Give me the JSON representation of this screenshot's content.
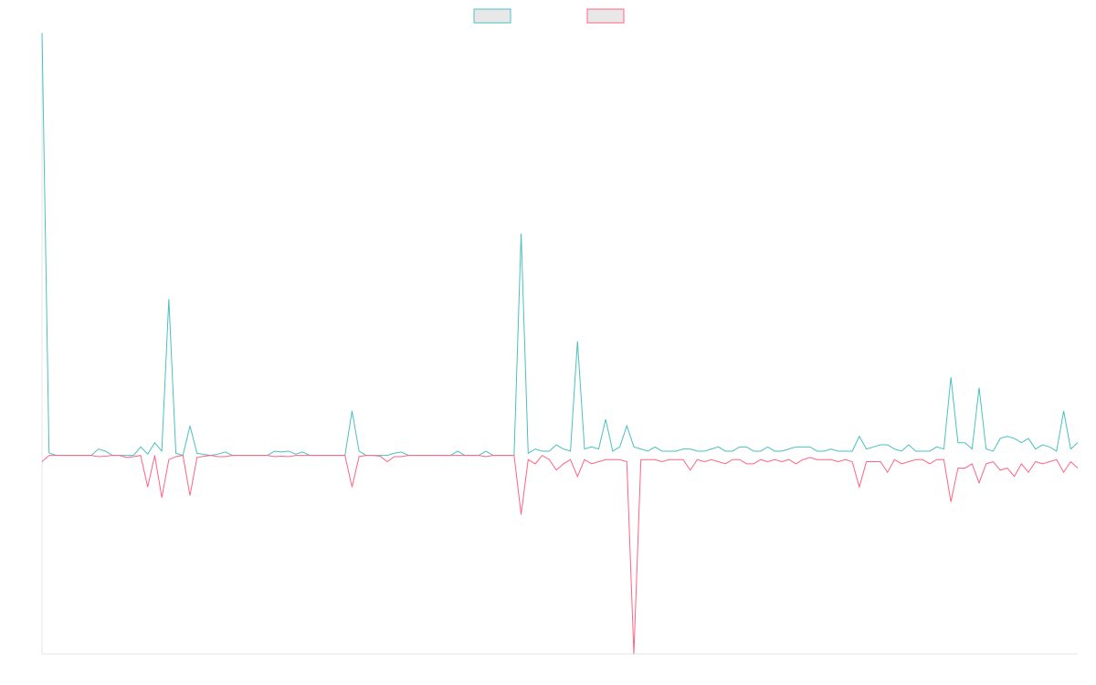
{
  "chart_data": {
    "type": "line",
    "ylim": [
      -47,
      100
    ],
    "legend": "top",
    "series": [
      {
        "color": "#4bc0c0",
        "values": [
          100,
          0.6,
          0,
          0,
          0,
          0,
          0,
          0,
          1.5,
          1,
          0,
          0,
          0,
          0,
          2,
          0.3,
          3,
          1,
          37,
          0.5,
          0,
          7,
          0.5,
          0.2,
          0,
          0.3,
          0.8,
          0,
          0,
          0,
          0,
          0,
          0,
          1,
          0.8,
          1,
          0.3,
          0.8,
          0,
          0,
          0,
          0,
          0,
          0,
          10.5,
          1,
          0,
          0,
          0,
          0,
          0.5,
          0.8,
          0,
          0,
          0,
          0,
          0,
          0,
          0,
          1,
          0,
          0,
          0,
          1,
          0,
          0,
          0,
          0,
          52.5,
          0.5,
          1.5,
          1,
          1,
          2.5,
          1.5,
          1,
          27,
          1.5,
          2,
          1.5,
          8.5,
          1,
          2,
          7,
          2,
          1.5,
          1,
          2,
          1,
          1,
          1,
          1.5,
          1.5,
          1,
          1,
          1.5,
          2,
          1,
          1,
          2,
          2,
          1,
          1,
          2,
          1,
          1,
          1.5,
          2,
          2,
          2,
          1,
          1,
          1.5,
          1,
          1,
          1,
          4.5,
          1.5,
          2,
          2.5,
          2.5,
          1.5,
          1,
          2.5,
          1,
          1,
          1,
          2,
          1.5,
          18.5,
          3,
          3,
          1.5,
          16,
          1.5,
          1,
          4,
          4.5,
          4,
          3,
          4,
          1.5,
          2.5,
          2,
          1,
          10.5,
          1.5,
          3
        ]
      },
      {
        "color": "#ff6384",
        "values": [
          -1.5,
          0,
          0,
          0,
          0,
          0,
          0,
          0,
          -0.3,
          -0.2,
          0,
          0,
          -0.5,
          -0.3,
          0,
          -7.5,
          0,
          -10,
          -1,
          -0.3,
          0,
          -9.5,
          -0.5,
          -0.2,
          0,
          -0.3,
          -0.3,
          0,
          0,
          0,
          0,
          0,
          0,
          -0.3,
          -0.2,
          -0.3,
          0,
          0,
          0,
          0,
          0,
          0,
          0,
          0,
          -7.5,
          -0.3,
          0,
          0,
          -0.2,
          -1.5,
          -0.3,
          -0.3,
          0,
          0,
          0,
          0,
          0,
          0,
          0,
          0,
          0,
          0,
          0,
          -0.3,
          0,
          0,
          0,
          0,
          -14,
          -1,
          -2,
          0,
          -1,
          -3.5,
          -2,
          -1,
          -5,
          -1,
          -2,
          -1.5,
          -1,
          -1,
          -1,
          -1.5,
          -47,
          -1,
          -1,
          -1,
          -1.5,
          -1,
          -1,
          -1,
          -3.5,
          -1,
          -1.5,
          -1,
          -1.5,
          -2,
          -1,
          -1,
          -2,
          -2,
          -1,
          -1.5,
          -1,
          -1.5,
          -1,
          -2,
          -1,
          -0.5,
          -1,
          -1,
          -1,
          -1.5,
          -1,
          -1.5,
          -7.5,
          -1.5,
          -1.5,
          -1.5,
          -4,
          -1,
          -2,
          -1.5,
          -1,
          -1,
          -2,
          -1,
          -1,
          -11,
          -3,
          -3,
          -2,
          -6.5,
          -2,
          -1.5,
          -3.5,
          -3,
          -5,
          -2,
          -4,
          -1.5,
          -2,
          -1.5,
          -1,
          -4,
          -1.5,
          -3
        ]
      }
    ]
  }
}
